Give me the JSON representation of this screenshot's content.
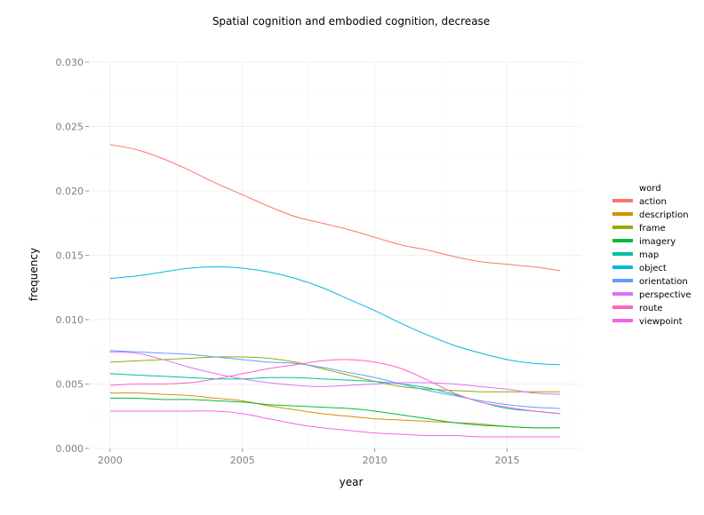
{
  "chart_data": {
    "type": "line",
    "title": "Spatial cognition and embodied cognition, decrease",
    "xlabel": "year",
    "ylabel": "frequency",
    "xlim": [
      1999.2,
      2017.8
    ],
    "ylim": [
      0,
      0.03
    ],
    "x_ticks": [
      "2000",
      "2005",
      "2010",
      "2015"
    ],
    "x_tick_values": [
      2000,
      2005,
      2010,
      2015
    ],
    "y_ticks": [
      "0.000",
      "0.005",
      "0.010",
      "0.015",
      "0.020",
      "0.025",
      "0.030"
    ],
    "y_tick_values": [
      0,
      0.005,
      0.01,
      0.015,
      0.02,
      0.025,
      0.03
    ],
    "grid": true,
    "legend": {
      "title": "word",
      "position": "right"
    },
    "x": [
      2000,
      2001,
      2002,
      2003,
      2004,
      2005,
      2006,
      2007,
      2008,
      2009,
      2010,
      2011,
      2012,
      2013,
      2014,
      2015,
      2016,
      2017
    ],
    "series": [
      {
        "name": "action",
        "color": "#F8766D",
        "values": [
          0.0236,
          0.0232,
          0.0225,
          0.0216,
          0.0206,
          0.0197,
          0.0188,
          0.018,
          0.0175,
          0.017,
          0.0164,
          0.0158,
          0.0154,
          0.0149,
          0.0145,
          0.0143,
          0.0141,
          0.0138
        ]
      },
      {
        "name": "description",
        "color": "#D39200",
        "values": [
          0.0043,
          0.0043,
          0.0042,
          0.0041,
          0.0039,
          0.0037,
          0.0033,
          0.003,
          0.0027,
          0.0025,
          0.0023,
          0.0022,
          0.0021,
          0.002,
          0.0019,
          0.0017,
          0.0016,
          0.0016
        ]
      },
      {
        "name": "frame",
        "color": "#93AA00",
        "values": [
          0.0067,
          0.0068,
          0.0069,
          0.007,
          0.0071,
          0.0071,
          0.007,
          0.0067,
          0.0062,
          0.0057,
          0.0052,
          0.0048,
          0.0046,
          0.0045,
          0.0044,
          0.0044,
          0.0044,
          0.0044
        ]
      },
      {
        "name": "imagery",
        "color": "#00BA38",
        "values": [
          0.0039,
          0.0039,
          0.0038,
          0.0038,
          0.0037,
          0.0036,
          0.0034,
          0.0033,
          0.0032,
          0.0031,
          0.0029,
          0.0026,
          0.0023,
          0.002,
          0.0018,
          0.0017,
          0.0016,
          0.0016
        ]
      },
      {
        "name": "map",
        "color": "#00C19F",
        "values": [
          0.0058,
          0.0057,
          0.0056,
          0.0055,
          0.0054,
          0.0054,
          0.0055,
          0.0055,
          0.0054,
          0.0053,
          0.0052,
          0.005,
          0.0047,
          0.0042,
          0.0036,
          0.0031,
          0.0029,
          0.0027
        ]
      },
      {
        "name": "object",
        "color": "#00B9E3",
        "values": [
          0.0132,
          0.0134,
          0.0137,
          0.014,
          0.0141,
          0.014,
          0.0137,
          0.0132,
          0.0125,
          0.0116,
          0.0107,
          0.0097,
          0.0088,
          0.008,
          0.0074,
          0.0069,
          0.0066,
          0.0065
        ]
      },
      {
        "name": "orientation",
        "color": "#619CFF",
        "values": [
          0.0076,
          0.0075,
          0.0074,
          0.0073,
          0.0071,
          0.0069,
          0.0067,
          0.0066,
          0.0063,
          0.0059,
          0.0055,
          0.005,
          0.0045,
          0.0041,
          0.0037,
          0.0034,
          0.0032,
          0.0031
        ]
      },
      {
        "name": "perspective",
        "color": "#DB72FB",
        "values": [
          0.0075,
          0.0074,
          0.0069,
          0.0063,
          0.0058,
          0.0054,
          0.0051,
          0.0049,
          0.0048,
          0.0049,
          0.005,
          0.0051,
          0.0051,
          0.005,
          0.0048,
          0.0046,
          0.0043,
          0.0042
        ]
      },
      {
        "name": "route",
        "color": "#FF61C3",
        "values": [
          0.0049,
          0.005,
          0.005,
          0.0051,
          0.0054,
          0.0058,
          0.0062,
          0.0065,
          0.0068,
          0.0069,
          0.0067,
          0.0062,
          0.0053,
          0.0043,
          0.0036,
          0.0032,
          0.0029,
          0.0027
        ]
      },
      {
        "name": "viewpoint",
        "color": "#F564E3",
        "values": [
          0.0029,
          0.0029,
          0.0029,
          0.0029,
          0.0029,
          0.0027,
          0.0023,
          0.0019,
          0.0016,
          0.0014,
          0.0012,
          0.0011,
          0.001,
          0.001,
          0.0009,
          0.0009,
          0.0009,
          0.0009
        ]
      }
    ]
  }
}
